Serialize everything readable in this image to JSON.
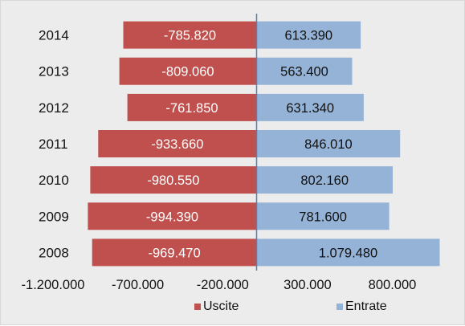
{
  "chart_data": {
    "type": "bar",
    "orientation": "horizontal",
    "categories": [
      "2008",
      "2009",
      "2010",
      "2011",
      "2012",
      "2013",
      "2014"
    ],
    "series": [
      {
        "name": "Uscite",
        "values": [
          -969470,
          -994390,
          -980550,
          -933660,
          -761850,
          -809060,
          -785820
        ],
        "labels": [
          "-969.470",
          "-994.390",
          "-980.550",
          "-933.660",
          "-761.850",
          "-809.060",
          "-785.820"
        ],
        "color": "#c0504d"
      },
      {
        "name": "Entrate",
        "values": [
          1079480,
          781600,
          802160,
          846010,
          631340,
          563400,
          613390
        ],
        "labels": [
          "1.079.480",
          "781.600",
          "802.160",
          "846.010",
          "631.340",
          "563.400",
          "613.390"
        ],
        "color": "#95b3d7"
      }
    ],
    "xlim": [
      -1200000,
      1200000
    ],
    "xticks": [
      -1200000,
      -700000,
      -200000,
      300000,
      800000
    ],
    "xtick_labels": [
      "-1.200.000",
      "-700.000",
      "-200.000",
      "300.000",
      "800.000"
    ],
    "axis_color": "#4f81bd",
    "grid": false,
    "legend_position": "bottom",
    "bar_stacking": "overlap"
  }
}
